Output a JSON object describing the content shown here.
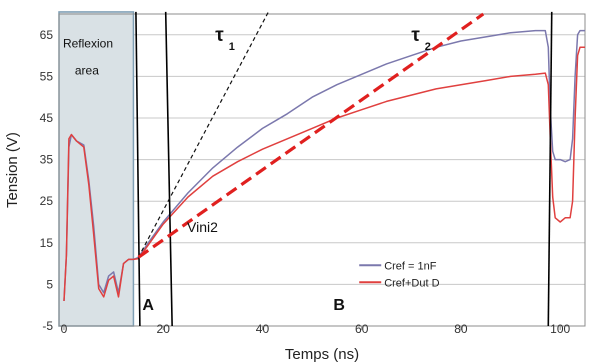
{
  "chart_data": {
    "type": "line",
    "xlabel": "Temps (ns)",
    "ylabel": "Tension (V)",
    "xlim": [
      -1,
      105
    ],
    "ylim": [
      -5,
      70
    ],
    "x_ticks": [
      0,
      20,
      40,
      60,
      80,
      100
    ],
    "y_ticks": [
      -5,
      5,
      15,
      25,
      35,
      45,
      55,
      65
    ],
    "grid": "horizontal",
    "legend_position": "bottom-right",
    "series": [
      {
        "name": "Cref = 1nF",
        "color": "#7b78ad",
        "x": [
          0,
          0.5,
          1,
          1.5,
          2.5,
          4,
          5,
          6,
          7,
          8,
          9,
          10,
          11,
          12,
          13,
          14,
          15,
          17,
          20,
          25,
          30,
          35,
          40,
          45,
          50,
          55,
          60,
          65,
          70,
          75,
          80,
          85,
          90,
          95,
          97,
          97.6,
          98,
          98.5,
          99,
          100,
          101,
          102,
          102.5,
          103,
          103.5,
          104,
          105
        ],
        "y": [
          1,
          12,
          38,
          41,
          39.5,
          38.5,
          30,
          19,
          5,
          3,
          7,
          8,
          3,
          10,
          11,
          11,
          11.5,
          15,
          20,
          27,
          33,
          38,
          42.5,
          46,
          50,
          53,
          55.5,
          58,
          60,
          62,
          63.5,
          64.5,
          65.5,
          66,
          66,
          62,
          47,
          37,
          35,
          35,
          34.5,
          35,
          40,
          55,
          65,
          66,
          66
        ]
      },
      {
        "name": "Cref+Dut D",
        "color": "#e0403f",
        "x": [
          0,
          0.5,
          1,
          1.5,
          2.5,
          4,
          5,
          6,
          7,
          8,
          9,
          10,
          11,
          12,
          13,
          14,
          15,
          17,
          20,
          25,
          30,
          35,
          40,
          45,
          50,
          55,
          60,
          65,
          70,
          75,
          80,
          85,
          90,
          95,
          97,
          97.6,
          98,
          98.5,
          99,
          100,
          101,
          102,
          102.5,
          103,
          103.5,
          104,
          105
        ],
        "y": [
          1,
          12,
          40,
          41,
          39.5,
          38,
          29,
          17,
          4,
          2,
          6,
          7,
          2,
          10,
          11,
          11,
          11.2,
          14.5,
          19.5,
          26,
          31,
          34.5,
          37.5,
          40,
          42.5,
          45,
          47,
          49,
          50.5,
          52,
          53,
          54,
          55,
          55.5,
          55.8,
          53,
          40,
          26,
          21,
          20,
          21,
          21,
          25,
          45,
          60,
          62,
          62
        ]
      }
    ],
    "annotations": {
      "tau1": "τ",
      "tau1_sub": "1",
      "tau2": "τ",
      "tau2_sub": "2",
      "vini2": "Vini2",
      "label_a": "A",
      "label_b": "B",
      "reflexion_line1": "Reflexion",
      "reflexion_line2": "area"
    },
    "colors": {
      "reflexion_fill": "#d9e1e5",
      "reflexion_border": "#7f9fb5",
      "tau2_line": "#e0201f",
      "tau2_label": "#e0201f",
      "tau1_line": "#111111"
    }
  }
}
